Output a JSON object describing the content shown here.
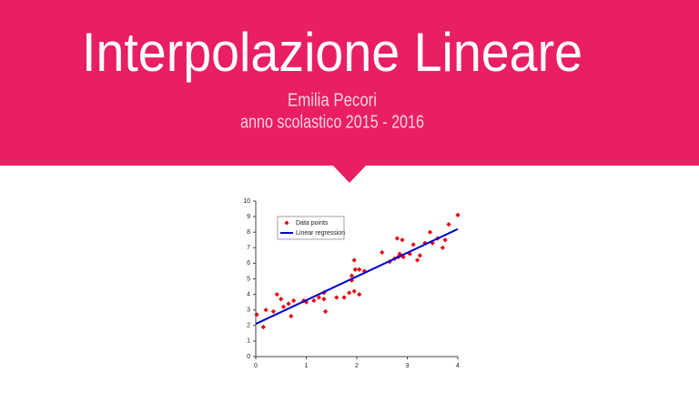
{
  "header": {
    "title": "Interpolazione Lineare",
    "author": "Emilia Pecori",
    "year_line": "anno scolastico 2015 - 2016"
  },
  "chart_data": {
    "type": "scatter",
    "xlim": [
      0,
      4
    ],
    "xticks": [
      0,
      1,
      2,
      3,
      4
    ],
    "ylim": [
      0,
      10
    ],
    "yticks": [
      0,
      1,
      2,
      3,
      4,
      5,
      6,
      7,
      8,
      9,
      10
    ],
    "legend": "upper left",
    "series": [
      {
        "name": "Data points",
        "color": "#e8000b",
        "kind": "markers",
        "x": [
          0.02,
          0.15,
          0.2,
          0.35,
          0.42,
          0.5,
          0.55,
          0.65,
          0.7,
          0.75,
          0.95,
          1.0,
          1.15,
          1.25,
          1.35,
          1.35,
          1.38,
          1.6,
          1.75,
          1.85,
          1.9,
          1.9,
          1.95,
          1.95,
          1.97,
          2.05,
          2.05,
          2.15,
          2.5,
          2.65,
          2.75,
          2.8,
          2.82,
          2.85,
          2.9,
          2.92,
          3.05,
          3.12,
          3.2,
          3.25,
          3.35,
          3.45,
          3.5,
          3.6,
          3.7,
          3.75,
          3.82,
          4.0
        ],
        "values": [
          2.7,
          1.9,
          3.0,
          2.9,
          4.0,
          3.7,
          3.2,
          3.4,
          2.6,
          3.6,
          3.6,
          3.5,
          3.6,
          3.8,
          4.1,
          3.7,
          2.9,
          3.8,
          3.8,
          4.1,
          4.9,
          5.2,
          4.2,
          6.2,
          5.6,
          5.6,
          4.0,
          5.5,
          6.7,
          6.1,
          6.3,
          7.6,
          6.4,
          6.6,
          7.5,
          6.4,
          6.6,
          7.2,
          6.2,
          6.5,
          7.3,
          8.0,
          7.3,
          7.6,
          7.0,
          7.5,
          8.5,
          9.1
        ]
      },
      {
        "name": "Linear regression",
        "color": "#0000cc",
        "kind": "line",
        "x": [
          0,
          4
        ],
        "values": [
          2.1,
          8.2
        ]
      }
    ]
  }
}
